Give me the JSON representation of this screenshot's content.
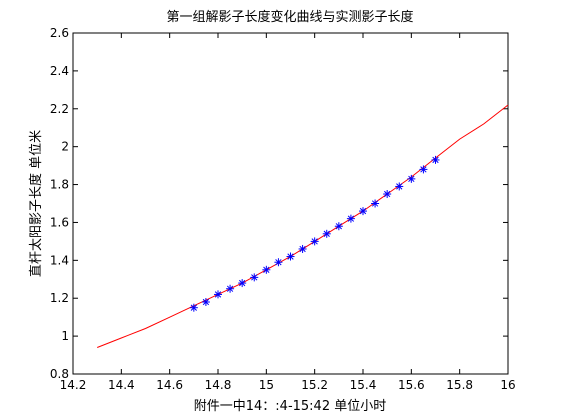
{
  "chart_data": {
    "type": "line",
    "title": "第一组解影子长度变化曲线与实测影子长度",
    "xlabel": "附件一中14：:4-15:42 单位小时",
    "ylabel": "直杆太阳影子长度 单位米",
    "xlim": [
      14.2,
      16
    ],
    "ylim": [
      0.8,
      2.6
    ],
    "xticks": [
      "14.2",
      "14.4",
      "14.6",
      "14.8",
      "15",
      "15.2",
      "15.4",
      "15.6",
      "15.8",
      "16"
    ],
    "yticks": [
      "0.8",
      "1",
      "1.2",
      "1.4",
      "1.6",
      "1.8",
      "2",
      "2.2",
      "2.4",
      "2.6"
    ],
    "grid": false,
    "series": [
      {
        "style": "line",
        "color": "#ff0000",
        "x": [
          14.3,
          14.4,
          14.5,
          14.6,
          14.7,
          14.8,
          14.9,
          15.0,
          15.1,
          15.2,
          15.3,
          15.4,
          15.5,
          15.6,
          15.7,
          15.8,
          15.9,
          16.0
        ],
        "y": [
          0.94,
          0.99,
          1.04,
          1.1,
          1.16,
          1.22,
          1.28,
          1.35,
          1.42,
          1.5,
          1.58,
          1.66,
          1.75,
          1.84,
          1.94,
          2.04,
          2.12,
          2.22
        ]
      },
      {
        "style": "marker",
        "marker": "asterisk",
        "color": "#0000ff",
        "x": [
          14.7,
          14.75,
          14.8,
          14.85,
          14.9,
          14.95,
          15.0,
          15.05,
          15.1,
          15.15,
          15.2,
          15.25,
          15.3,
          15.35,
          15.4,
          15.45,
          15.5,
          15.55,
          15.6,
          15.65,
          15.7
        ],
        "y": [
          1.15,
          1.18,
          1.22,
          1.25,
          1.28,
          1.31,
          1.35,
          1.39,
          1.42,
          1.46,
          1.5,
          1.54,
          1.58,
          1.62,
          1.66,
          1.7,
          1.75,
          1.79,
          1.83,
          1.88,
          1.93
        ]
      }
    ]
  }
}
